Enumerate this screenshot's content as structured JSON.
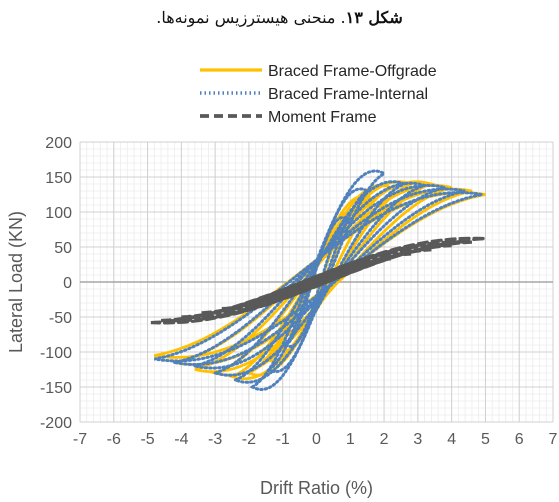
{
  "caption": {
    "label": "شکل ۱۳",
    "text": ". منحنی هیسترزیس نمونه‌ها."
  },
  "chart_data": {
    "type": "line",
    "title": "",
    "xlabel": "Drift Ratio (%)",
    "ylabel": "Lateral Load (KN)",
    "xlim": [
      -7,
      7
    ],
    "ylim": [
      -200,
      200
    ],
    "xticks": [
      -7,
      -6,
      -5,
      -4,
      -3,
      -2,
      -1,
      0,
      1,
      2,
      3,
      4,
      5,
      6,
      7
    ],
    "yticks": [
      -200,
      -150,
      -100,
      -50,
      0,
      50,
      100,
      150,
      200
    ],
    "grid": true,
    "legend_position": "top",
    "series": [
      {
        "name": "Braced Frame-Offgrade",
        "color": "#FFC000",
        "line_style": "solid",
        "cycles": [
          {
            "amp_pos": 1.0,
            "amp_neg": -1.0,
            "peak_pos": 95,
            "peak_neg": -95
          },
          {
            "amp_pos": 1.6,
            "amp_neg": -1.5,
            "peak_pos": 120,
            "peak_neg": -110
          },
          {
            "amp_pos": 2.2,
            "amp_neg": -2.0,
            "peak_pos": 135,
            "peak_neg": -130
          },
          {
            "amp_pos": 2.8,
            "amp_neg": -2.5,
            "peak_pos": 140,
            "peak_neg": -135
          },
          {
            "amp_pos": 3.4,
            "amp_neg": -3.0,
            "peak_pos": 140,
            "peak_neg": -130
          },
          {
            "amp_pos": 4.0,
            "amp_neg": -3.6,
            "peak_pos": 135,
            "peak_neg": -125
          },
          {
            "amp_pos": 4.6,
            "amp_neg": -4.2,
            "peak_pos": 130,
            "peak_neg": -115
          },
          {
            "amp_pos": 5.0,
            "amp_neg": -4.8,
            "peak_pos": 125,
            "peak_neg": -105
          }
        ]
      },
      {
        "name": "Braced Frame-Internal",
        "color": "#4F81BD",
        "line_style": "dotted",
        "cycles": [
          {
            "amp_pos": 0.9,
            "amp_neg": -0.9,
            "peak_pos": 90,
            "peak_neg": -90
          },
          {
            "amp_pos": 1.5,
            "amp_neg": -1.4,
            "peak_pos": 130,
            "peak_neg": -125
          },
          {
            "amp_pos": 2.0,
            "amp_neg": -1.9,
            "peak_pos": 155,
            "peak_neg": -150
          },
          {
            "amp_pos": 2.6,
            "amp_neg": -2.4,
            "peak_pos": 140,
            "peak_neg": -140
          },
          {
            "amp_pos": 3.2,
            "amp_neg": -3.0,
            "peak_pos": 138,
            "peak_neg": -130
          },
          {
            "amp_pos": 3.8,
            "amp_neg": -3.6,
            "peak_pos": 135,
            "peak_neg": -120
          },
          {
            "amp_pos": 4.4,
            "amp_neg": -4.2,
            "peak_pos": 130,
            "peak_neg": -115
          },
          {
            "amp_pos": 4.9,
            "amp_neg": -4.8,
            "peak_pos": 125,
            "peak_neg": -110
          }
        ]
      },
      {
        "name": "Moment Frame",
        "color": "#595959",
        "line_style": "dashed",
        "cycles": [
          {
            "amp_pos": 0.5,
            "amp_neg": -0.5,
            "peak_pos": 10,
            "peak_neg": -10
          },
          {
            "amp_pos": 1.0,
            "amp_neg": -1.0,
            "peak_pos": 18,
            "peak_neg": -18
          },
          {
            "amp_pos": 1.6,
            "amp_neg": -1.6,
            "peak_pos": 26,
            "peak_neg": -25
          },
          {
            "amp_pos": 2.2,
            "amp_neg": -2.2,
            "peak_pos": 33,
            "peak_neg": -32
          },
          {
            "amp_pos": 2.8,
            "amp_neg": -2.8,
            "peak_pos": 40,
            "peak_neg": -38
          },
          {
            "amp_pos": 3.4,
            "amp_neg": -3.4,
            "peak_pos": 46,
            "peak_neg": -44
          },
          {
            "amp_pos": 4.0,
            "amp_neg": -4.0,
            "peak_pos": 52,
            "peak_neg": -50
          },
          {
            "amp_pos": 4.6,
            "amp_neg": -4.6,
            "peak_pos": 57,
            "peak_neg": -55
          },
          {
            "amp_pos": 5.0,
            "amp_neg": -4.9,
            "peak_pos": 62,
            "peak_neg": -58
          }
        ]
      }
    ]
  }
}
